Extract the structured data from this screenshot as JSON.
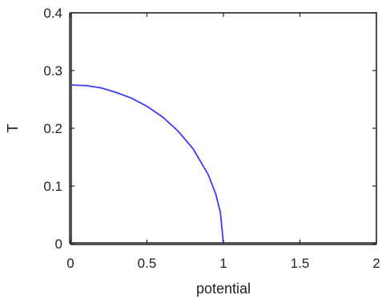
{
  "chart_data": {
    "type": "line",
    "title": "",
    "xlabel": "potential",
    "ylabel": "T",
    "xlim": [
      0,
      2
    ],
    "ylim": [
      0,
      0.4
    ],
    "x_ticks": [
      "0",
      "0.5",
      "1",
      "1.5",
      "2"
    ],
    "y_ticks": [
      "0",
      "0.1",
      "0.2",
      "0.3",
      "0.4"
    ],
    "grid": false,
    "legend": "none",
    "series": [
      {
        "color": "#3b3bf5",
        "x": [
          0,
          0.1,
          0.2,
          0.3,
          0.4,
          0.5,
          0.6,
          0.7,
          0.8,
          0.9,
          0.95,
          0.98,
          1.0,
          1.2,
          1.4,
          1.6,
          1.8,
          2.0
        ],
        "y": [
          0.275,
          0.274,
          0.27,
          0.262,
          0.252,
          0.238,
          0.22,
          0.196,
          0.165,
          0.12,
          0.086,
          0.054,
          0.0,
          0.0,
          0.0,
          0.0,
          0.0,
          0.0
        ]
      }
    ]
  }
}
